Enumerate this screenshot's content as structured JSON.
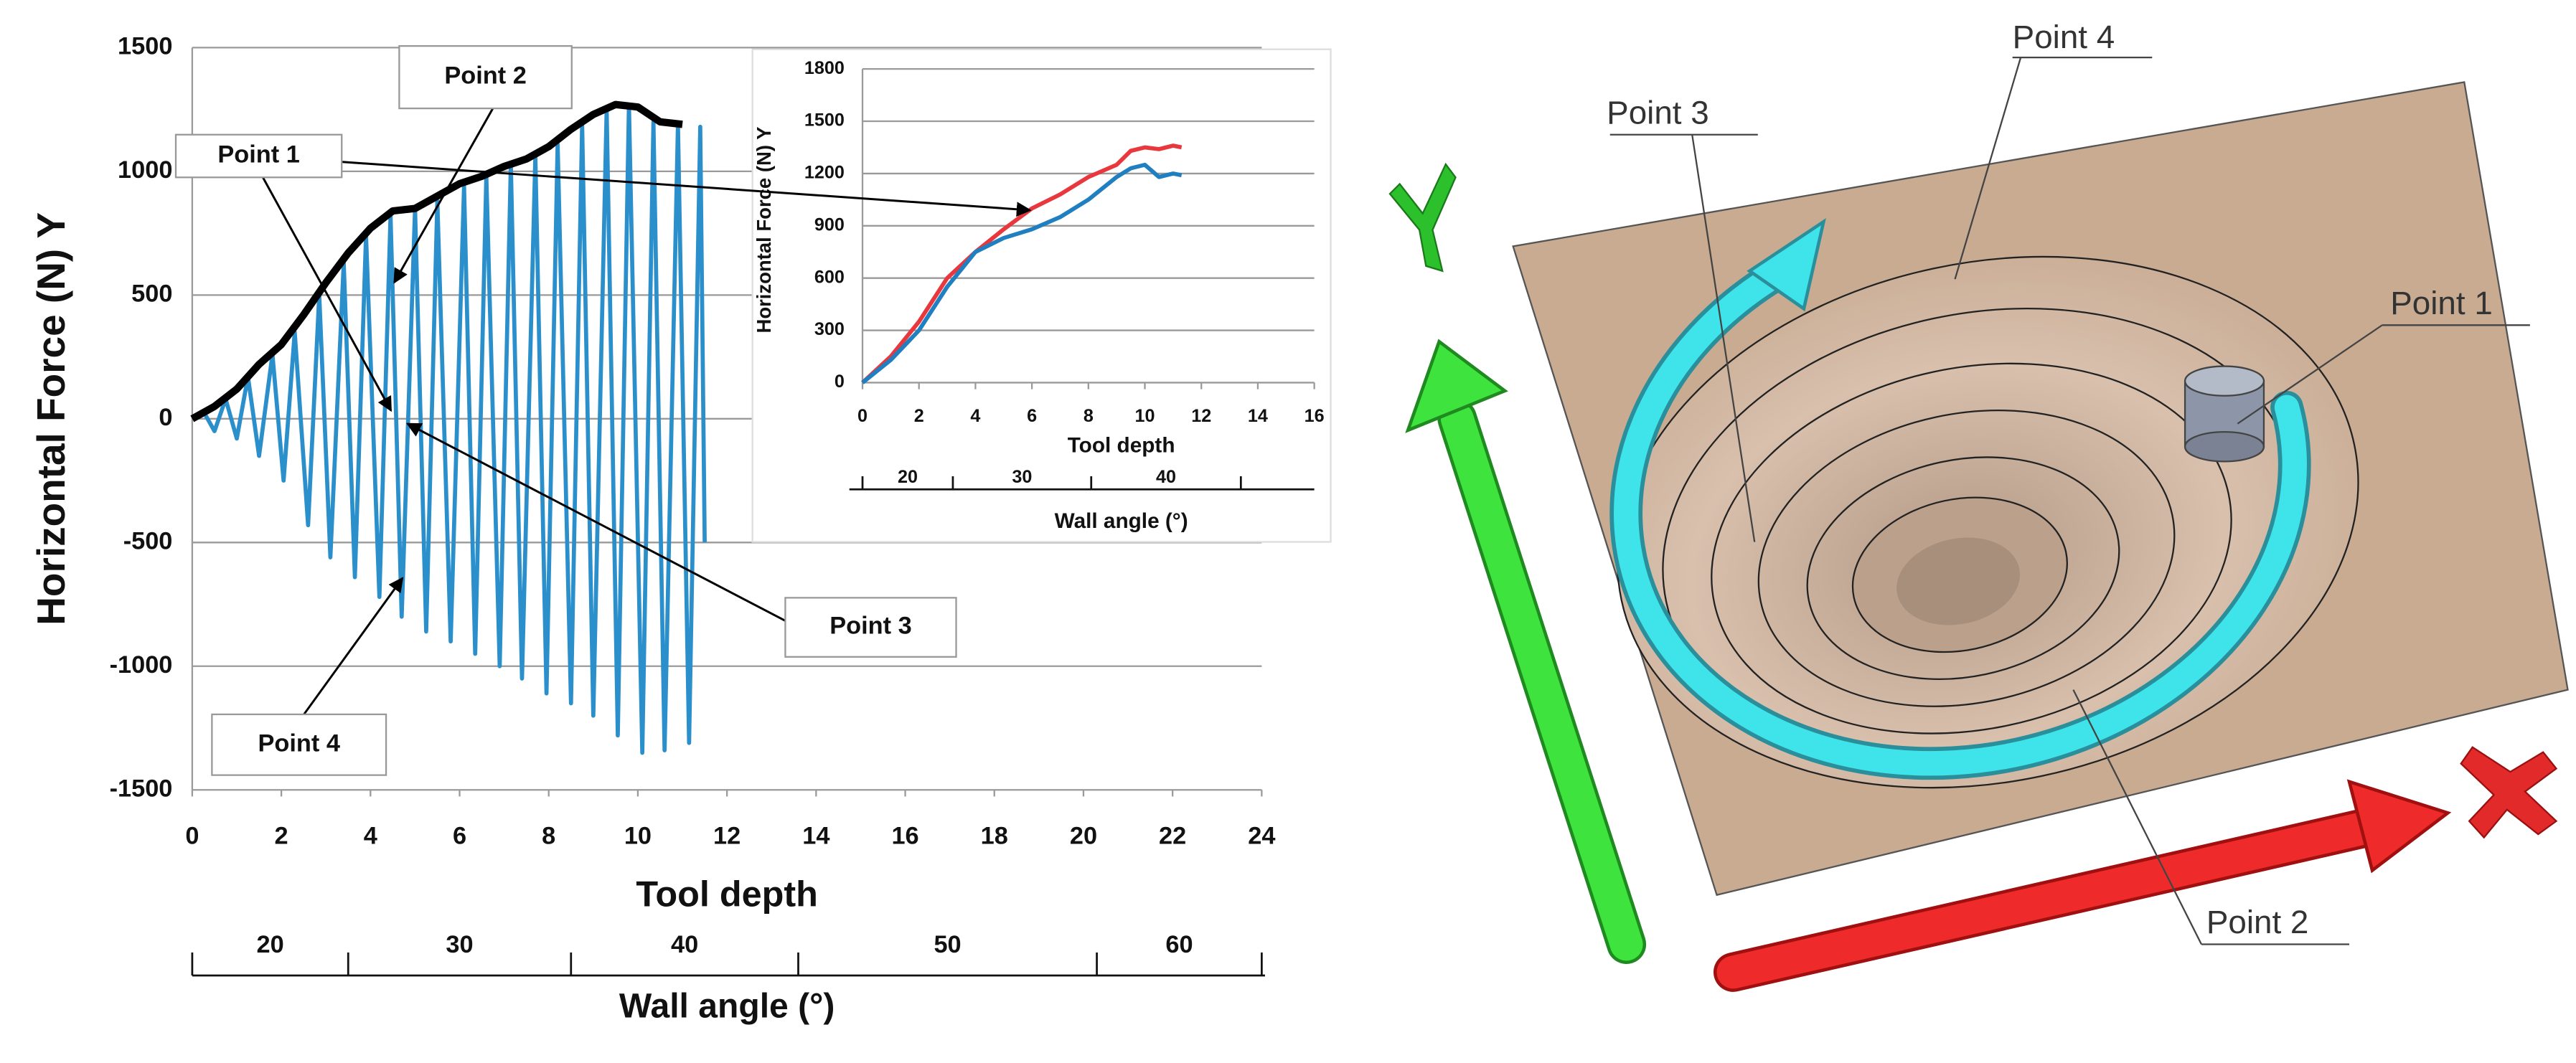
{
  "chart_data": [
    {
      "type": "line",
      "y_label": "Horizontal Force (N) Y",
      "x_label": "Tool depth",
      "xlim": [
        0,
        24
      ],
      "xticks": [
        0,
        2,
        4,
        6,
        8,
        10,
        12,
        14,
        16,
        18,
        20,
        22,
        24
      ],
      "ylim": [
        -1500,
        1500
      ],
      "yticks": [
        -1500,
        -1000,
        -500,
        0,
        500,
        1000,
        1500
      ],
      "grid": true,
      "series": [
        {
          "color": "#2b8fcb",
          "x": [
            0,
            0.25,
            0.5,
            0.75,
            1.0,
            1.25,
            1.5,
            1.8,
            2.05,
            2.3,
            2.6,
            2.85,
            3.1,
            3.4,
            3.65,
            3.9,
            4.2,
            4.45,
            4.7,
            5.0,
            5.25,
            5.5,
            5.8,
            6.1,
            6.35,
            6.6,
            6.9,
            7.15,
            7.4,
            7.7,
            7.95,
            8.2,
            8.5,
            8.75,
            9.0,
            9.3,
            9.55,
            9.8,
            10.1,
            10.35,
            10.6,
            10.9,
            11.15,
            11.4,
            11.5
          ],
          "values": [
            0,
            30,
            -50,
            80,
            -80,
            170,
            -150,
            260,
            -250,
            350,
            -430,
            500,
            -560,
            630,
            -640,
            740,
            -720,
            820,
            -800,
            850,
            -860,
            880,
            -900,
            940,
            -950,
            980,
            -1000,
            1030,
            -1050,
            1060,
            -1110,
            1110,
            -1150,
            1190,
            -1200,
            1250,
            -1280,
            1270,
            -1350,
            1200,
            -1340,
            1190,
            -1310,
            1180,
            -500
          ]
        },
        {
          "color": "#000000",
          "x": [
            0,
            0.5,
            1,
            1.5,
            2,
            2.5,
            3,
            3.5,
            4,
            4.5,
            5,
            5.5,
            6,
            6.5,
            7,
            7.5,
            8,
            8.5,
            9,
            9.5,
            10,
            10.5,
            11
          ],
          "values": [
            0,
            50,
            120,
            220,
            300,
            420,
            550,
            670,
            770,
            840,
            850,
            900,
            950,
            980,
            1020,
            1050,
            1100,
            1170,
            1230,
            1270,
            1260,
            1200,
            1190
          ]
        }
      ],
      "secondary_x": {
        "label": "Wall angle (°)",
        "labels": [
          20,
          30,
          40,
          50,
          60
        ],
        "boundaries": [
          0,
          3.5,
          8.5,
          13.6,
          20.3,
          24
        ]
      },
      "annotations": [
        {
          "text": "Point 1"
        },
        {
          "text": "Point 2"
        },
        {
          "text": "Point 3"
        },
        {
          "text": "Point 4"
        }
      ]
    },
    {
      "type": "line",
      "y_label": "Horizontal Force (N) Y",
      "x_label": "Tool depth",
      "xlim": [
        0,
        16
      ],
      "xticks": [
        0,
        2,
        4,
        6,
        8,
        10,
        12,
        14,
        16
      ],
      "ylim": [
        0,
        1800
      ],
      "yticks": [
        0,
        300,
        600,
        900,
        1200,
        1500,
        1800
      ],
      "grid": true,
      "series": [
        {
          "color": "#e8383d",
          "x": [
            0,
            1,
            2,
            3,
            4,
            5,
            6,
            7,
            8,
            9,
            9.5,
            10,
            10.5,
            11,
            11.3
          ],
          "values": [
            0,
            150,
            350,
            600,
            750,
            880,
            1000,
            1080,
            1180,
            1250,
            1330,
            1350,
            1340,
            1360,
            1350
          ]
        },
        {
          "color": "#1f7fc0",
          "x": [
            0,
            1,
            2,
            3,
            4,
            5,
            6,
            7,
            8,
            9,
            9.5,
            10,
            10.5,
            11,
            11.3
          ],
          "values": [
            0,
            130,
            300,
            550,
            750,
            830,
            880,
            950,
            1050,
            1180,
            1230,
            1250,
            1180,
            1200,
            1190
          ]
        }
      ],
      "secondary_x": {
        "label": "Wall angle (°)",
        "labels": [
          20,
          30,
          40
        ],
        "boundaries": [
          0,
          3.2,
          8.1,
          13.4
        ]
      }
    }
  ],
  "illustration": {
    "labels": [
      "Point 4",
      "Point 3",
      "Point 1",
      "Point 2"
    ]
  }
}
